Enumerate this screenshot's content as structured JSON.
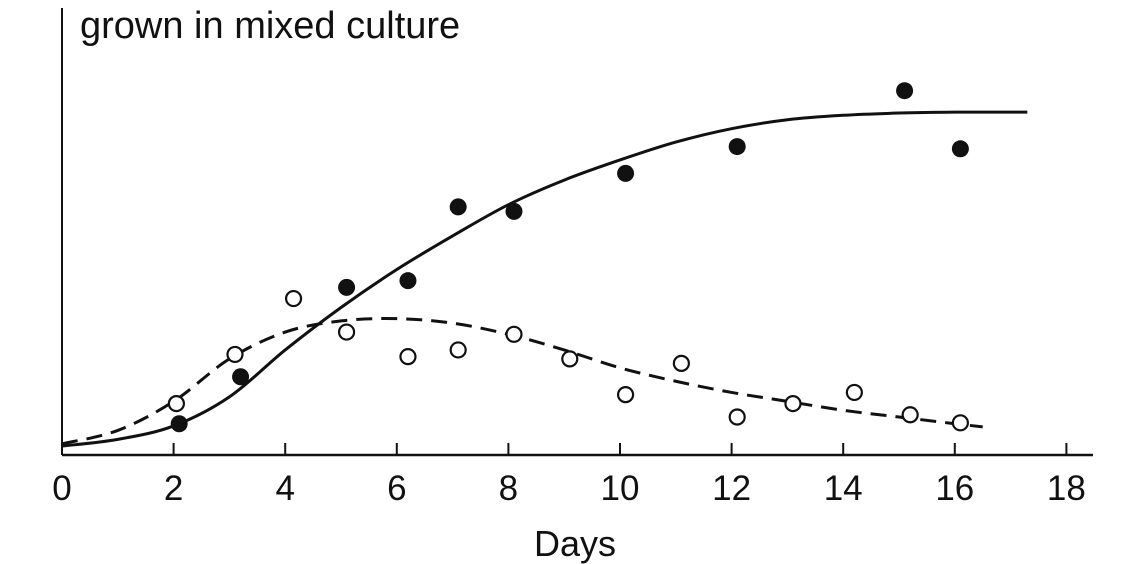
{
  "chart_data": {
    "type": "scatter",
    "title": "grown in mixed culture",
    "xlabel": "Days",
    "ylabel": "",
    "xlim": [
      0,
      18
    ],
    "ylim": [
      0,
      1
    ],
    "x_ticks": [
      0,
      2,
      4,
      6,
      8,
      10,
      12,
      14,
      16,
      18
    ],
    "y_ticks_shown": false,
    "grid": false,
    "legend": "none",
    "series": [
      {
        "marker": "filled-circle",
        "line_style": "solid",
        "color": "#111111",
        "points": [
          {
            "x": 2.1,
            "y": 0.07
          },
          {
            "x": 3.2,
            "y": 0.175
          },
          {
            "x": 5.1,
            "y": 0.375
          },
          {
            "x": 6.2,
            "y": 0.39
          },
          {
            "x": 7.1,
            "y": 0.555
          },
          {
            "x": 8.1,
            "y": 0.545
          },
          {
            "x": 10.1,
            "y": 0.63
          },
          {
            "x": 12.1,
            "y": 0.69
          },
          {
            "x": 15.1,
            "y": 0.815
          },
          {
            "x": 16.1,
            "y": 0.685
          }
        ],
        "fit": [
          {
            "x": 0,
            "y": 0.02
          },
          {
            "x": 1,
            "y": 0.035
          },
          {
            "x": 2,
            "y": 0.065
          },
          {
            "x": 3,
            "y": 0.13
          },
          {
            "x": 4,
            "y": 0.235
          },
          {
            "x": 5,
            "y": 0.33
          },
          {
            "x": 6,
            "y": 0.415
          },
          {
            "x": 7,
            "y": 0.49
          },
          {
            "x": 8,
            "y": 0.56
          },
          {
            "x": 9,
            "y": 0.615
          },
          {
            "x": 10,
            "y": 0.66
          },
          {
            "x": 11,
            "y": 0.7
          },
          {
            "x": 12,
            "y": 0.73
          },
          {
            "x": 13,
            "y": 0.75
          },
          {
            "x": 14,
            "y": 0.76
          },
          {
            "x": 15,
            "y": 0.765
          },
          {
            "x": 16,
            "y": 0.767
          },
          {
            "x": 17.3,
            "y": 0.767
          }
        ]
      },
      {
        "marker": "open-circle",
        "line_style": "dashed",
        "color": "#111111",
        "points": [
          {
            "x": 2.05,
            "y": 0.115
          },
          {
            "x": 3.1,
            "y": 0.225
          },
          {
            "x": 4.15,
            "y": 0.35
          },
          {
            "x": 5.1,
            "y": 0.275
          },
          {
            "x": 6.2,
            "y": 0.22
          },
          {
            "x": 7.1,
            "y": 0.235
          },
          {
            "x": 8.1,
            "y": 0.27
          },
          {
            "x": 9.1,
            "y": 0.215
          },
          {
            "x": 10.1,
            "y": 0.135
          },
          {
            "x": 11.1,
            "y": 0.205
          },
          {
            "x": 12.1,
            "y": 0.085
          },
          {
            "x": 13.1,
            "y": 0.115
          },
          {
            "x": 14.2,
            "y": 0.14
          },
          {
            "x": 15.2,
            "y": 0.09
          },
          {
            "x": 16.1,
            "y": 0.072
          }
        ],
        "fit": [
          {
            "x": 0,
            "y": 0.025
          },
          {
            "x": 1,
            "y": 0.055
          },
          {
            "x": 2,
            "y": 0.12
          },
          {
            "x": 3,
            "y": 0.215
          },
          {
            "x": 4,
            "y": 0.275
          },
          {
            "x": 5,
            "y": 0.3
          },
          {
            "x": 6,
            "y": 0.305
          },
          {
            "x": 7,
            "y": 0.295
          },
          {
            "x": 8,
            "y": 0.27
          },
          {
            "x": 9,
            "y": 0.235
          },
          {
            "x": 10,
            "y": 0.195
          },
          {
            "x": 11,
            "y": 0.165
          },
          {
            "x": 12,
            "y": 0.14
          },
          {
            "x": 13,
            "y": 0.12
          },
          {
            "x": 14,
            "y": 0.1
          },
          {
            "x": 15,
            "y": 0.085
          },
          {
            "x": 16,
            "y": 0.07
          },
          {
            "x": 16.5,
            "y": 0.063
          }
        ]
      }
    ]
  }
}
